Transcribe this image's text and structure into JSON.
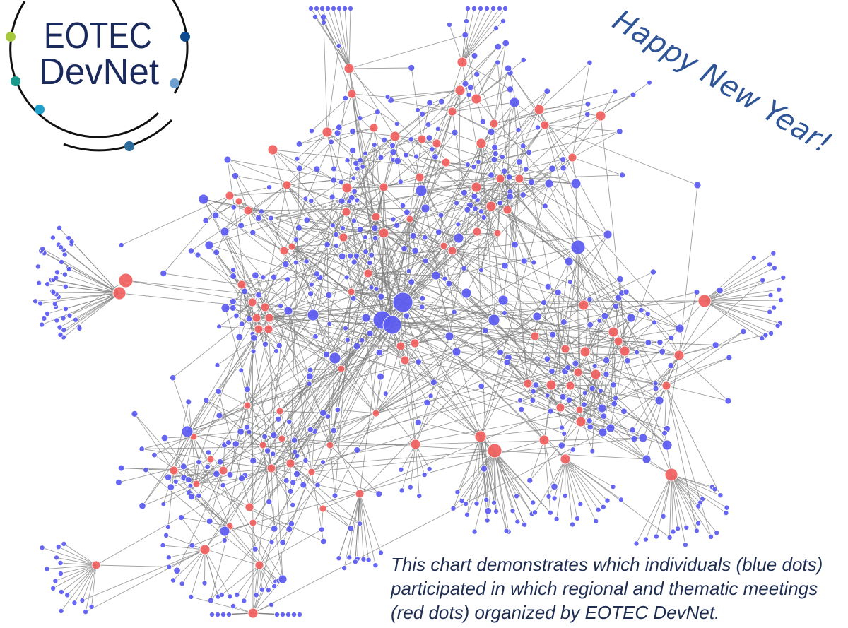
{
  "logo": {
    "line1": "EOTEC",
    "line2": "DevNet"
  },
  "greeting": "Happy New Year!",
  "caption": {
    "lines": [
      "This chart demonstrates which individuals (blue dots)",
      "participated in which regional and thematic meetings",
      "(red dots) organized by EOTEC DevNet."
    ]
  },
  "colors": {
    "participant_node": "#5b5bf2",
    "meeting_node": "#f26161",
    "edge": "#7d7d7d",
    "logo_text": "#1b2a5c",
    "logo_ring": "#111111",
    "logo_dots": [
      "#a6c83c",
      "#17998c",
      "#1f9fc9",
      "#0d4a8f",
      "#6f9fd0",
      "#2a6b99"
    ],
    "greeting": "#2f5597",
    "caption": "#1f2d50",
    "background": "#ffffff"
  }
}
